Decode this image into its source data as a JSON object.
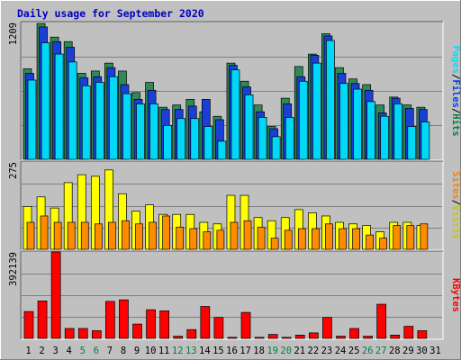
{
  "chart_data": {
    "type": "bar",
    "title": "Daily usage for September 2020",
    "categories": [
      "1",
      "2",
      "3",
      "4",
      "5",
      "6",
      "7",
      "8",
      "9",
      "10",
      "11",
      "12",
      "13",
      "14",
      "15",
      "16",
      "17",
      "18",
      "19",
      "20",
      "21",
      "22",
      "23",
      "24",
      "25",
      "26",
      "27",
      "28",
      "29",
      "30",
      "31"
    ],
    "weekend_days": [
      "5",
      "6",
      "12",
      "13",
      "19",
      "20",
      "26",
      "27"
    ],
    "panels": {
      "top": {
        "max_label": "1209",
        "max": 1209,
        "legend": [
          {
            "text": "Hits",
            "color": "#008040"
          },
          {
            "text": "Files",
            "color": "#0040ff"
          },
          {
            "text": "Pages",
            "color": "#00e0ff"
          }
        ],
        "series": [
          {
            "name": "Hits",
            "color": "#2e8b57",
            "values": [
              800,
              1200,
              1080,
              1040,
              760,
              780,
              850,
              780,
              590,
              680,
              460,
              480,
              530,
              420,
              380,
              850,
              690,
              480,
              290,
              540,
              820,
              930,
              1110,
              810,
              710,
              660,
              480,
              550,
              480,
              460,
              0
            ]
          },
          {
            "name": "Files",
            "color": "#1a3fd6",
            "values": [
              760,
              1170,
              1040,
              990,
              720,
              730,
              810,
              660,
              530,
              610,
              440,
              440,
              470,
              530,
              350,
              830,
              640,
              420,
              270,
              490,
              730,
              920,
              1090,
              760,
              670,
              610,
              410,
              540,
              450,
              440,
              0
            ]
          },
          {
            "name": "Pages",
            "color": "#00d8f8",
            "values": [
              700,
              1030,
              930,
              860,
              650,
              680,
              730,
              580,
              490,
              490,
              300,
              360,
              360,
              290,
              160,
              790,
              570,
              370,
              200,
              370,
              690,
              850,
              1050,
              670,
              620,
              510,
              380,
              490,
              290,
              330,
              0
            ]
          }
        ]
      },
      "middle": {
        "max_label": "275",
        "max": 275,
        "legend": [
          {
            "text": "Visits",
            "color": "#c8c800"
          },
          {
            "text": "/",
            "color": "#000000"
          },
          {
            "text": "Sites",
            "color": "#ff8000"
          }
        ],
        "series": [
          {
            "name": "Visits",
            "color": "#ffff00",
            "values": [
              135,
              165,
              130,
              210,
              235,
              230,
              250,
              175,
              120,
              140,
              110,
              110,
              110,
              85,
              80,
              170,
              170,
              100,
              90,
              100,
              125,
              115,
              105,
              85,
              80,
              75,
              55,
              85,
              85,
              75,
              0
            ]
          },
          {
            "name": "Sites",
            "color": "#ff8c00",
            "values": [
              85,
              105,
              85,
              85,
              85,
              80,
              85,
              90,
              80,
              85,
              105,
              70,
              65,
              55,
              60,
              85,
              90,
              70,
              35,
              60,
              65,
              65,
              80,
              65,
              65,
              45,
              35,
              75,
              75,
              80,
              0
            ]
          }
        ]
      },
      "bottom": {
        "max_label": "392139",
        "max": 392139,
        "legend": [
          {
            "text": "KBytes",
            "color": "#ff0000"
          }
        ],
        "series": [
          {
            "name": "KBytes",
            "color": "#ff0000",
            "values": [
              122000,
              170000,
              392139,
              45000,
              45000,
              35000,
              168000,
              175000,
              65000,
              130000,
              125000,
              10000,
              40000,
              145000,
              95000,
              5000,
              118000,
              5000,
              18000,
              5000,
              15000,
              25000,
              95000,
              10000,
              45000,
              10000,
              155000,
              15000,
              55000,
              35000,
              0
            ]
          }
        ]
      }
    }
  }
}
